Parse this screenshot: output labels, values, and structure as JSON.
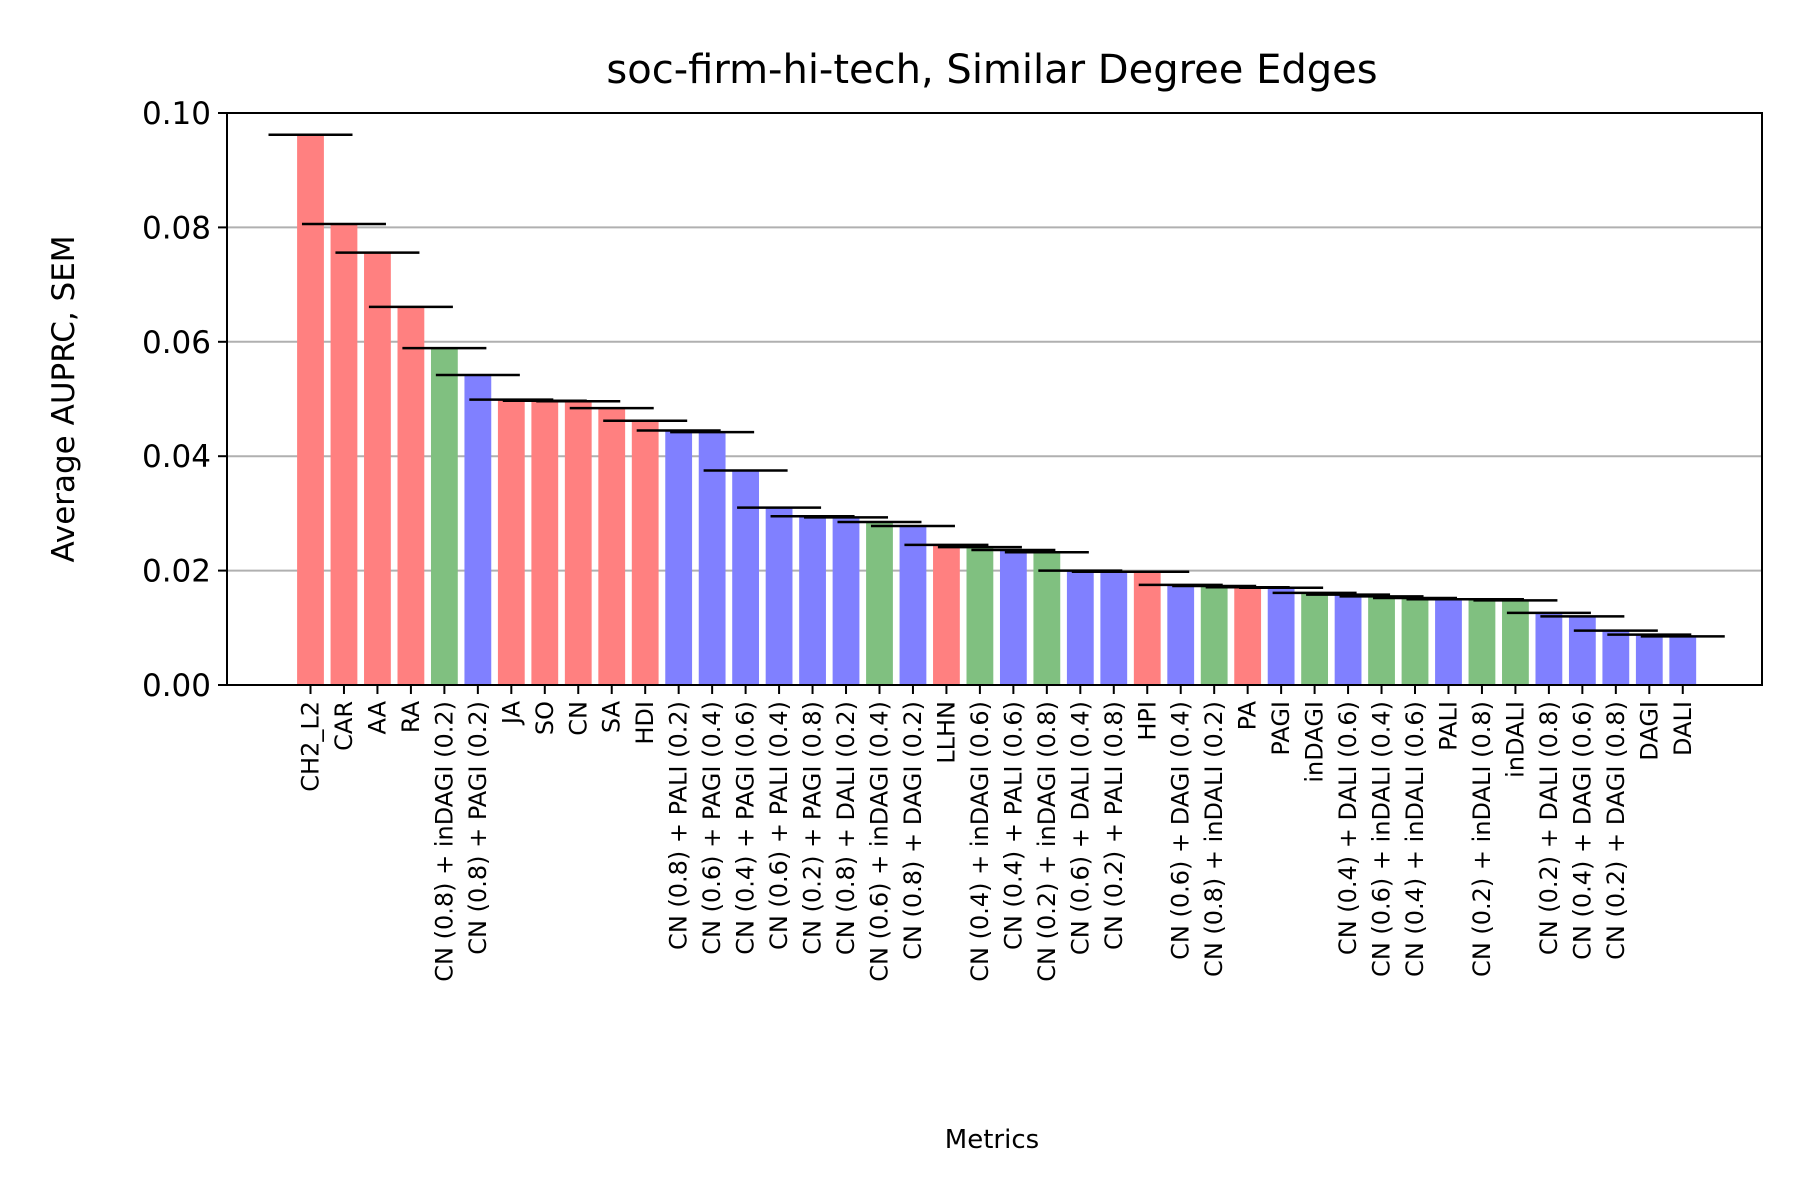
{
  "chart_data": {
    "type": "bar",
    "title": "soc-firm-hi-tech, Similar Degree Edges",
    "xlabel": "Metrics",
    "ylabel": "Average AUPRC, SEM",
    "ylim": [
      0,
      0.1
    ],
    "yticks": [
      "0.00",
      "0.02",
      "0.04",
      "0.06",
      "0.08",
      "0.10"
    ],
    "grid": "y",
    "colors": {
      "red": "#ff8080",
      "blue": "#8080ff",
      "green": "#80c080",
      "axis": "#000000",
      "grid": "#b0b0b0"
    },
    "categories": [
      "CH2_L2",
      "CAR",
      "AA",
      "RA",
      "CN (0.8) + inDAGI (0.2)",
      "CN (0.8) + PAGI (0.2)",
      "JA",
      "SO",
      "CN",
      "SA",
      "HDI",
      "CN (0.8) + PALI (0.2)",
      "CN (0.6) + PAGI (0.4)",
      "CN (0.4) + PAGI (0.6)",
      "CN (0.6) + PALI (0.4)",
      "CN (0.2) + PAGI (0.8)",
      "CN (0.8) + DALI (0.2)",
      "CN (0.6) + inDAGI (0.4)",
      "CN (0.8) + DAGI (0.2)",
      "LLHN",
      "CN (0.4) + inDAGI (0.6)",
      "CN (0.4) + PALI (0.6)",
      "CN (0.2) + inDAGI (0.8)",
      "CN (0.6) + DALI (0.4)",
      "CN (0.2) + PALI (0.8)",
      "HPI",
      "CN (0.6) + DAGI (0.4)",
      "CN (0.8) + inDALI (0.2)",
      "PA",
      "PAGI",
      "inDAGI",
      "CN (0.4) + DALI (0.6)",
      "CN (0.6) + inDALI (0.4)",
      "CN (0.4) + inDALI (0.6)",
      "PALI",
      "CN (0.2) + inDALI (0.8)",
      "inDALI",
      "CN (0.2) + DALI (0.8)",
      "CN (0.4) + DAGI (0.6)",
      "CN (0.2) + DAGI (0.8)",
      "DAGI",
      "DALI"
    ],
    "values": [
      0.0962,
      0.0806,
      0.0756,
      0.0661,
      0.0589,
      0.0542,
      0.0499,
      0.0497,
      0.0496,
      0.0484,
      0.0462,
      0.0445,
      0.0442,
      0.0375,
      0.031,
      0.0295,
      0.0293,
      0.0285,
      0.0278,
      0.0245,
      0.0241,
      0.0236,
      0.0232,
      0.02,
      0.0198,
      0.0198,
      0.0175,
      0.0173,
      0.0171,
      0.017,
      0.0161,
      0.0158,
      0.0155,
      0.0152,
      0.015,
      0.015,
      0.0148,
      0.0126,
      0.012,
      0.0095,
      0.0088,
      0.0085
    ],
    "sem": [
      0.0001,
      0.0001,
      0.0001,
      0.0001,
      0.0001,
      0.0001,
      0.0001,
      0.0001,
      0.0001,
      0.0001,
      0.0001,
      0.0001,
      0.0001,
      0.0001,
      0.0001,
      0.0001,
      0.0001,
      0.0001,
      0.0001,
      0.0001,
      0.0001,
      0.0001,
      0.0001,
      0.0001,
      0.0001,
      0.0001,
      0.0001,
      0.0001,
      0.0001,
      0.0001,
      0.0001,
      0.0001,
      0.0001,
      0.0001,
      0.0001,
      0.0001,
      0.0001,
      0.0001,
      0.0001,
      0.0001,
      0.0001,
      0.0001
    ],
    "bar_colors": [
      "red",
      "red",
      "red",
      "red",
      "green",
      "blue",
      "red",
      "red",
      "red",
      "red",
      "red",
      "blue",
      "blue",
      "blue",
      "blue",
      "blue",
      "blue",
      "green",
      "blue",
      "red",
      "green",
      "blue",
      "green",
      "blue",
      "blue",
      "red",
      "blue",
      "green",
      "red",
      "blue",
      "green",
      "blue",
      "green",
      "green",
      "blue",
      "green",
      "green",
      "blue",
      "blue",
      "blue",
      "blue",
      "blue"
    ]
  }
}
